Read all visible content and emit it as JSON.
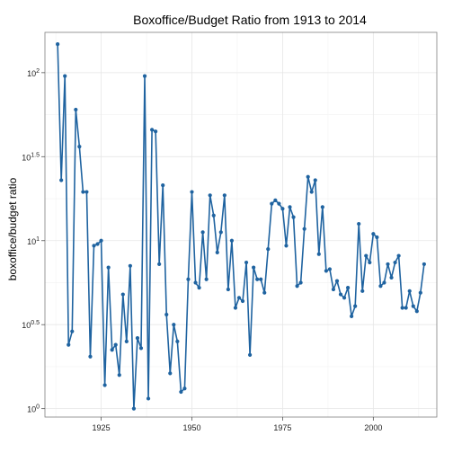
{
  "chart_data": {
    "type": "line",
    "title": "Boxoffice/Budget Ratio from 1913 to 2014",
    "xlabel": "",
    "ylabel": "boxoffice/budget ratio",
    "y_scale": "log10",
    "xlim": [
      1909.5,
      2017.5
    ],
    "ylim_log10": [
      -0.05,
      2.24
    ],
    "x_ticks": [
      1925,
      1950,
      1975,
      2000
    ],
    "y_ticks": [
      {
        "exp": 0,
        "base": "10",
        "sup": "0"
      },
      {
        "exp": 0.5,
        "base": "10",
        "sup": "0.5"
      },
      {
        "exp": 1,
        "base": "10",
        "sup": "1"
      },
      {
        "exp": 1.5,
        "base": "10",
        "sup": "1.5"
      },
      {
        "exp": 2,
        "base": "10",
        "sup": "2"
      }
    ],
    "grid": true,
    "line_color": "#1f63a0",
    "points_log10": [
      [
        1913,
        2.17
      ],
      [
        1914,
        1.36
      ],
      [
        1915,
        1.98
      ],
      [
        1916,
        0.38
      ],
      [
        1917,
        0.46
      ],
      [
        1918,
        1.78
      ],
      [
        1919,
        1.56
      ],
      [
        1920,
        1.29
      ],
      [
        1921,
        1.29
      ],
      [
        1922,
        0.31
      ],
      [
        1923,
        0.97
      ],
      [
        1924,
        0.98
      ],
      [
        1925,
        1.0
      ],
      [
        1926,
        0.14
      ],
      [
        1927,
        0.84
      ],
      [
        1928,
        0.35
      ],
      [
        1929,
        0.38
      ],
      [
        1930,
        0.2
      ],
      [
        1931,
        0.68
      ],
      [
        1932,
        0.4
      ],
      [
        1933,
        0.85
      ],
      [
        1934,
        0.0
      ],
      [
        1935,
        0.42
      ],
      [
        1936,
        0.36
      ],
      [
        1937,
        1.98
      ],
      [
        1938,
        0.06
      ],
      [
        1939,
        1.66
      ],
      [
        1940,
        1.65
      ],
      [
        1941,
        0.86
      ],
      [
        1942,
        1.33
      ],
      [
        1943,
        0.56
      ],
      [
        1944,
        0.21
      ],
      [
        1945,
        0.5
      ],
      [
        1946,
        0.4
      ],
      [
        1947,
        0.1
      ],
      [
        1948,
        0.12
      ],
      [
        1949,
        0.77
      ],
      [
        1950,
        1.29
      ],
      [
        1951,
        0.75
      ],
      [
        1952,
        0.72
      ],
      [
        1953,
        1.05
      ],
      [
        1954,
        0.77
      ],
      [
        1955,
        1.27
      ],
      [
        1956,
        1.15
      ],
      [
        1957,
        0.93
      ],
      [
        1958,
        1.05
      ],
      [
        1959,
        1.27
      ],
      [
        1960,
        0.71
      ],
      [
        1961,
        1.0
      ],
      [
        1962,
        0.6
      ],
      [
        1963,
        0.66
      ],
      [
        1964,
        0.64
      ],
      [
        1965,
        0.87
      ],
      [
        1966,
        0.32
      ],
      [
        1967,
        0.84
      ],
      [
        1968,
        0.77
      ],
      [
        1969,
        0.77
      ],
      [
        1970,
        0.69
      ],
      [
        1971,
        0.95
      ],
      [
        1972,
        1.22
      ],
      [
        1973,
        1.24
      ],
      [
        1974,
        1.22
      ],
      [
        1975,
        1.19
      ],
      [
        1976,
        0.97
      ],
      [
        1977,
        1.2
      ],
      [
        1978,
        1.14
      ],
      [
        1979,
        0.73
      ],
      [
        1980,
        0.75
      ],
      [
        1981,
        1.07
      ],
      [
        1982,
        1.38
      ],
      [
        1983,
        1.29
      ],
      [
        1984,
        1.36
      ],
      [
        1985,
        0.92
      ],
      [
        1986,
        1.2
      ],
      [
        1987,
        0.82
      ],
      [
        1988,
        0.83
      ],
      [
        1989,
        0.71
      ],
      [
        1990,
        0.76
      ],
      [
        1991,
        0.68
      ],
      [
        1992,
        0.66
      ],
      [
        1993,
        0.72
      ],
      [
        1994,
        0.55
      ],
      [
        1995,
        0.61
      ],
      [
        1996,
        1.1
      ],
      [
        1997,
        0.7
      ],
      [
        1998,
        0.91
      ],
      [
        1999,
        0.87
      ],
      [
        2000,
        1.04
      ],
      [
        2001,
        1.02
      ],
      [
        2002,
        0.73
      ],
      [
        2003,
        0.75
      ],
      [
        2004,
        0.86
      ],
      [
        2005,
        0.78
      ],
      [
        2006,
        0.87
      ],
      [
        2007,
        0.91
      ],
      [
        2008,
        0.6
      ],
      [
        2009,
        0.6
      ],
      [
        2010,
        0.7
      ],
      [
        2011,
        0.61
      ],
      [
        2012,
        0.58
      ],
      [
        2013,
        0.69
      ],
      [
        2014,
        0.86
      ]
    ]
  }
}
